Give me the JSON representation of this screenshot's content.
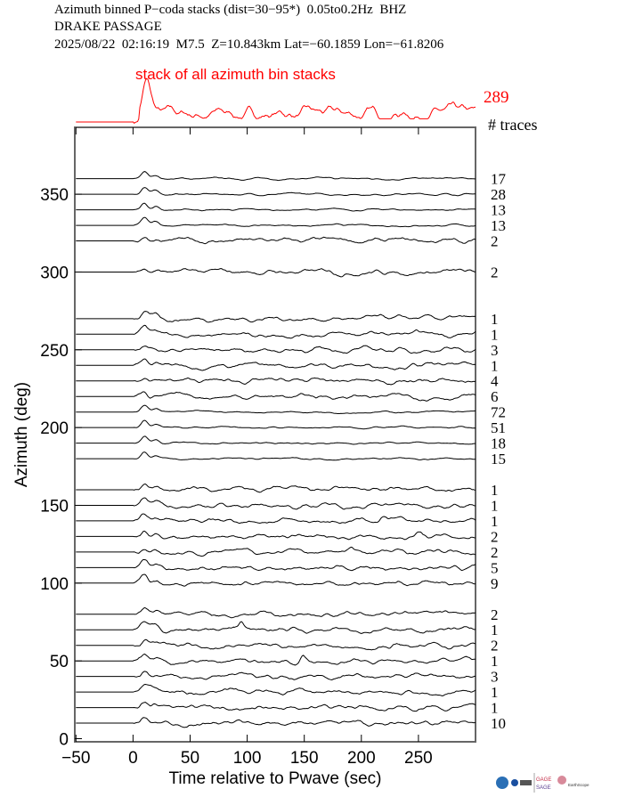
{
  "header": {
    "line1": "Azimuth binned P−coda stacks (dist=30−95*)  0.05to0.2Hz  BHZ",
    "line2": "DRAKE PASSAGE",
    "line3": "2025/08/22  02:16:19  M7.5  Z=10.843km Lat=−60.1859 Lon=−61.8206"
  },
  "logos": {
    "text1": "GAGE",
    "text2": "SAGE",
    "text3": "EarthScope"
  },
  "chart_data": {
    "type": "line",
    "title": "Azimuth binned P-coda stacks",
    "xlabel": "Time relative to Pwave (sec)",
    "ylabel": "Azimuth (deg)",
    "xlim": [
      -51,
      300
    ],
    "ylim": [
      -2,
      393
    ],
    "xticks": [
      -50,
      0,
      50,
      100,
      150,
      200,
      250
    ],
    "yticks": [
      0,
      50,
      100,
      150,
      200,
      250,
      300,
      350
    ],
    "stack": {
      "label": "stack of all azimuth bin stacks",
      "count": "289",
      "color": "#ff0000"
    },
    "count_header": "# traces",
    "trace_color": "#000000",
    "traces": [
      {
        "azimuth": 360,
        "count": "17"
      },
      {
        "azimuth": 350,
        "count": "28"
      },
      {
        "azimuth": 340,
        "count": "13"
      },
      {
        "azimuth": 330,
        "count": "13"
      },
      {
        "azimuth": 320,
        "count": "2"
      },
      {
        "azimuth": 300,
        "count": "2"
      },
      {
        "azimuth": 270,
        "count": "1"
      },
      {
        "azimuth": 260,
        "count": "1"
      },
      {
        "azimuth": 250,
        "count": "3"
      },
      {
        "azimuth": 240,
        "count": "1"
      },
      {
        "azimuth": 230,
        "count": "4"
      },
      {
        "azimuth": 220,
        "count": "6"
      },
      {
        "azimuth": 210,
        "count": "72"
      },
      {
        "azimuth": 200,
        "count": "51"
      },
      {
        "azimuth": 190,
        "count": "18"
      },
      {
        "azimuth": 180,
        "count": "15"
      },
      {
        "azimuth": 160,
        "count": "1"
      },
      {
        "azimuth": 150,
        "count": "1"
      },
      {
        "azimuth": 140,
        "count": "1"
      },
      {
        "azimuth": 130,
        "count": "2"
      },
      {
        "azimuth": 120,
        "count": "2"
      },
      {
        "azimuth": 110,
        "count": "5"
      },
      {
        "azimuth": 100,
        "count": "9"
      },
      {
        "azimuth": 80,
        "count": "2"
      },
      {
        "azimuth": 70,
        "count": "1"
      },
      {
        "azimuth": 60,
        "count": "2"
      },
      {
        "azimuth": 50,
        "count": "1"
      },
      {
        "azimuth": 40,
        "count": "3"
      },
      {
        "azimuth": 30,
        "count": "1"
      },
      {
        "azimuth": 20,
        "count": "1"
      },
      {
        "azimuth": 10,
        "count": "10"
      }
    ]
  }
}
